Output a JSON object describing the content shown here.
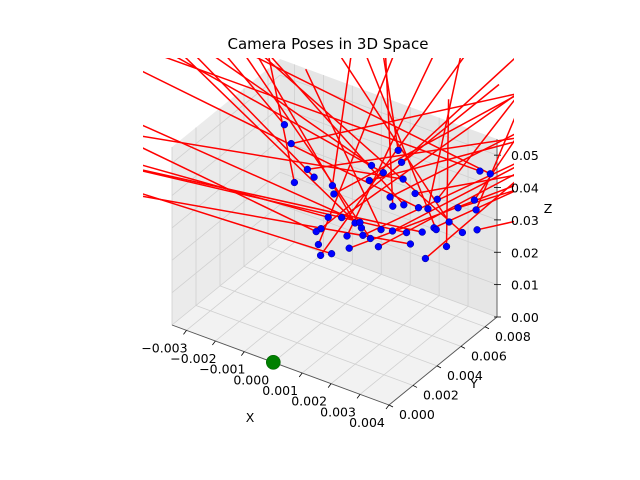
{
  "chart_data": {
    "type": "scatter",
    "projection": "3d",
    "title": "Camera Poses in 3D Space",
    "xlabel": "X",
    "ylabel": "Y",
    "zlabel": "Z",
    "x_ticks": [
      "−0.003",
      "−0.002",
      "−0.001",
      "0.000",
      "0.001",
      "0.002",
      "0.003",
      "0.004"
    ],
    "y_ticks": [
      "0.000",
      "0.002",
      "0.004",
      "0.006",
      "0.008"
    ],
    "z_ticks": [
      "0.00",
      "0.01",
      "0.02",
      "0.03",
      "0.04",
      "0.05"
    ],
    "xlim": [
      -0.0035,
      0.004
    ],
    "ylim": [
      0.0,
      0.009
    ],
    "zlim": [
      0.0,
      0.055
    ],
    "grid": true,
    "series": [
      {
        "kind": "camera_positions",
        "color": "#0000ff",
        "marker": "circle",
        "points": [
          [
            -0.0016,
            0.0067,
            0.0341
          ],
          [
            -0.0012,
            0.0063,
            0.0342
          ],
          [
            -0.0009,
            0.0071,
            0.0302
          ],
          [
            -0.0006,
            0.0065,
            0.0304
          ],
          [
            -0.0003,
            0.0053,
            0.0278
          ],
          [
            0.0,
            0.0057,
            0.0275
          ],
          [
            0.0003,
            0.0061,
            0.0256
          ],
          [
            0.0006,
            0.0059,
            0.0257
          ],
          [
            0.0009,
            0.0053,
            0.0262
          ],
          [
            0.0003,
            0.0065,
            0.0246
          ],
          [
            -0.0003,
            0.0047,
            0.0261
          ],
          [
            0.0006,
            0.0047,
            0.0268
          ],
          [
            0.0002,
            0.0077,
            0.0382
          ],
          [
            0.0005,
            0.0068,
            0.0373
          ],
          [
            0.0009,
            0.007,
            0.0404
          ],
          [
            0.001,
            0.008,
            0.0446
          ],
          [
            0.0012,
            0.0078,
            0.0422
          ],
          [
            0.0015,
            0.0072,
            0.0398
          ],
          [
            0.0013,
            0.0066,
            0.0354
          ],
          [
            0.0016,
            0.0061,
            0.0351
          ],
          [
            0.0019,
            0.0063,
            0.0359
          ],
          [
            0.002,
            0.007,
            0.0376
          ],
          [
            0.0022,
            0.0068,
            0.0345
          ],
          [
            0.0024,
            0.0071,
            0.0339
          ],
          [
            0.0026,
            0.0074,
            0.0366
          ],
          [
            0.0027,
            0.0059,
            0.0313
          ],
          [
            0.0029,
            0.0064,
            0.0318
          ],
          [
            0.0031,
            0.0061,
            0.0328
          ],
          [
            0.0033,
            0.0067,
            0.034
          ],
          [
            0.0034,
            0.0072,
            0.0372
          ],
          [
            0.0037,
            0.0083,
            0.0462
          ],
          [
            0.0038,
            0.0076,
            0.0397
          ],
          [
            0.0039,
            0.0075,
            0.0373
          ],
          [
            0.0041,
            0.0082,
            0.047
          ],
          [
            0.0041,
            0.0071,
            0.033
          ],
          [
            0.0038,
            0.0066,
            0.0327
          ],
          [
            0.0035,
            0.006,
            0.0292
          ],
          [
            0.0031,
            0.0052,
            0.0266
          ],
          [
            0.0022,
            0.0058,
            0.0298
          ],
          [
            0.0018,
            0.0056,
            0.0296
          ],
          [
            0.0014,
            0.0056,
            0.0287
          ],
          [
            0.0012,
            0.0052,
            0.0265
          ],
          [
            0.0008,
            0.0044,
            0.0246
          ],
          [
            0.0004,
            0.0039,
            0.0231
          ],
          [
            0.0001,
            0.0037,
            0.0222
          ],
          [
            -0.0001,
            0.004,
            0.024
          ],
          [
            -0.0003,
            0.0043,
            0.0264
          ],
          [
            -0.0022,
            0.0068,
            0.0398
          ],
          [
            -0.0026,
            0.0072,
            0.0431
          ],
          [
            -0.0018,
            0.0061,
            0.0312
          ],
          [
            0.0016,
            0.0049,
            0.0262
          ],
          [
            0.0025,
            0.0054,
            0.0285
          ]
        ]
      },
      {
        "kind": "world_origin",
        "color": "#008000",
        "marker": "circle",
        "points": [
          [
            0.0,
            0.0,
            0.0
          ]
        ]
      }
    ]
  },
  "colors": {
    "orientation_lines": "#ff0000",
    "pane_left": "#ebebeb",
    "pane_right": "#e6e6e6",
    "pane_floor": "#f2f2f2",
    "grid": "#d0d0d0"
  }
}
